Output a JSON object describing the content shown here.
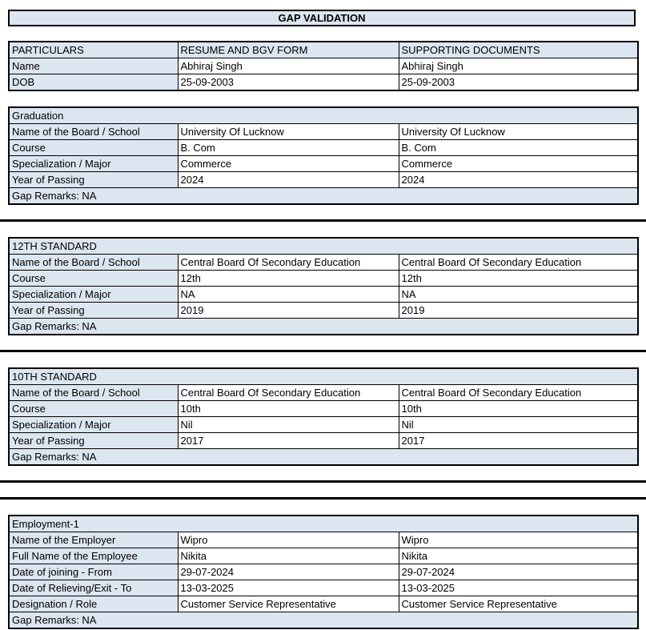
{
  "title": "GAP VALIDATION",
  "table_header": {
    "particulars": "PARTICULARS",
    "resume": "RESUME AND BGV FORM",
    "supporting": "SUPPORTING DOCUMENTS"
  },
  "identity_rows": [
    {
      "label": "Name",
      "resume": "Abhiraj Singh",
      "supporting": "Abhiraj Singh"
    },
    {
      "label": "DOB",
      "resume": "25-09-2003",
      "supporting": "25-09-2003"
    }
  ],
  "sections": [
    {
      "heading": "Graduation",
      "rows": [
        {
          "label": "Name of the Board / School",
          "resume": "University Of Lucknow",
          "supporting": "University Of Lucknow"
        },
        {
          "label": "Course",
          "resume": "B. Com",
          "supporting": "B. Com"
        },
        {
          "label": "Specialization / Major",
          "resume": "Commerce",
          "supporting": "Commerce"
        },
        {
          "label": "Year of Passing",
          "resume": "2024",
          "supporting": "2024"
        }
      ],
      "gap_remarks": "Gap Remarks: NA"
    },
    {
      "heading": "12TH STANDARD",
      "rows": [
        {
          "label": "Name of the Board / School",
          "resume": "Central Board Of Secondary Education",
          "supporting": "Central Board Of Secondary Education"
        },
        {
          "label": "Course",
          "resume": "12th",
          "supporting": "12th"
        },
        {
          "label": "Specialization / Major",
          "resume": "NA",
          "supporting": "NA"
        },
        {
          "label": "Year of Passing",
          "resume": "2019",
          "supporting": "2019"
        }
      ],
      "gap_remarks": "Gap Remarks: NA"
    },
    {
      "heading": "10TH STANDARD",
      "rows": [
        {
          "label": "Name of the Board / School",
          "resume": "Central Board Of Secondary Education",
          "supporting": "Central Board Of Secondary Education"
        },
        {
          "label": "Course",
          "resume": "10th",
          "supporting": "10th"
        },
        {
          "label": "Specialization / Major",
          "resume": "Nil",
          "supporting": "Nil"
        },
        {
          "label": "Year of Passing",
          "resume": "2017",
          "supporting": "2017"
        }
      ],
      "gap_remarks": "Gap Remarks: NA"
    },
    {
      "heading": "Employment-1",
      "rows": [
        {
          "label": "Name of the Employer",
          "resume": "Wipro",
          "supporting": "Wipro"
        },
        {
          "label": "Full Name of the Employee",
          "resume": "Nikita",
          "supporting": "Nikita"
        },
        {
          "label": "Date of joining - From",
          "resume": "29-07-2024",
          "supporting": "29-07-2024"
        },
        {
          "label": "Date of Relieving/Exit - To",
          "resume": "13-03-2025",
          "supporting": "13-03-2025"
        },
        {
          "label": "Designation / Role",
          "resume": "Customer Service Representative",
          "supporting": "Customer Service Representative"
        }
      ],
      "gap_remarks": "Gap Remarks: NA"
    }
  ],
  "colors": {
    "header_fill": "#dce6f1",
    "border": "#000000",
    "text": "#000000",
    "background": "#ffffff"
  }
}
